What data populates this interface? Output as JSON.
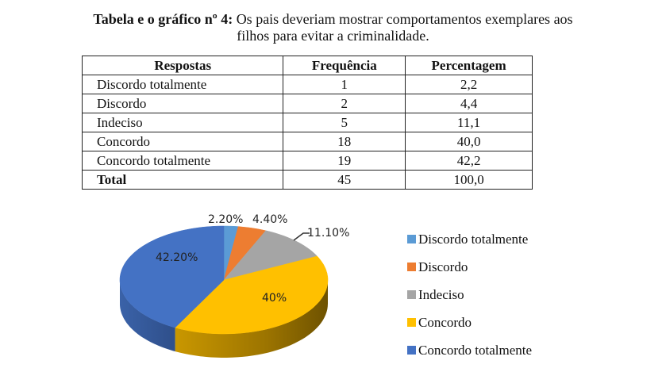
{
  "title": {
    "bold": "Tabela e o gráfico nº 4:",
    "line1_rest": " Os pais deveriam mostrar comportamentos exemplares aos",
    "line2": "filhos para evitar a criminalidade."
  },
  "table": {
    "headers": [
      "Respostas",
      "Frequência",
      "Percentagem"
    ],
    "rows": [
      {
        "resposta": "Discordo totalmente",
        "frequencia": "1",
        "percentagem": "2,2"
      },
      {
        "resposta": "Discordo",
        "frequencia": "2",
        "percentagem": "4,4"
      },
      {
        "resposta": "Indeciso",
        "frequencia": "5",
        "percentagem": "11,1"
      },
      {
        "resposta": "Concordo",
        "frequencia": "18",
        "percentagem": "40,0"
      },
      {
        "resposta": "Concordo totalmente",
        "frequencia": "19",
        "percentagem": "42,2"
      }
    ],
    "total": {
      "resposta": "Total",
      "frequencia": "45",
      "percentagem": "100,0"
    }
  },
  "chart_data": {
    "type": "pie",
    "title": "",
    "categories": [
      "Discordo totalmente",
      "Discordo",
      "Indeciso",
      "Concordo",
      "Concordo totalmente"
    ],
    "values": [
      2.2,
      4.4,
      11.1,
      40.0,
      42.2
    ],
    "data_labels": [
      "2.20%",
      "4.40%",
      "11.10%",
      "40%",
      "42.20%"
    ],
    "colors": [
      "#5B9BD5",
      "#ED7D31",
      "#A5A5A5",
      "#FFC000",
      "#4472C4"
    ],
    "legend_position": "right",
    "style": "3d"
  },
  "legend": {
    "items": [
      {
        "label": "Discordo totalmente",
        "color": "#5B9BD5"
      },
      {
        "label": "Discordo",
        "color": "#ED7D31"
      },
      {
        "label": "Indeciso",
        "color": "#A5A5A5"
      },
      {
        "label": "Concordo",
        "color": "#FFC000"
      },
      {
        "label": "Concordo totalmente",
        "color": "#4472C4"
      }
    ]
  }
}
